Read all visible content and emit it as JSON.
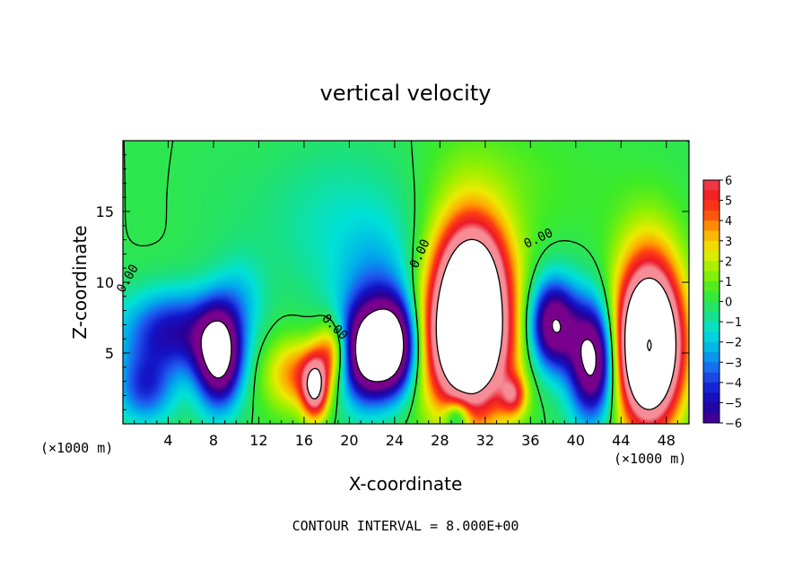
{
  "chart_data": {
    "type": "heatmap",
    "title": "vertical velocity",
    "xlabel": "X-coordinate",
    "ylabel": "Z-coordinate",
    "x_unit": "(×1000 m)",
    "footer": "CONTOUR INTERVAL = 8.000E+00",
    "xlim": [
      0,
      50
    ],
    "ylim": [
      0,
      20
    ],
    "xticks": [
      4,
      8,
      12,
      16,
      20,
      24,
      28,
      32,
      36,
      40,
      44,
      48
    ],
    "yticks": [
      5,
      10,
      15
    ],
    "colorbar": {
      "range": [
        -6,
        6
      ],
      "labels": [
        "6",
        "5",
        "4",
        "3",
        "2",
        "1",
        "0",
        "−1",
        "−2",
        "−3",
        "−4",
        "−5",
        "−6"
      ]
    },
    "contour_labels": [
      "0.00",
      "0.00",
      "0.00",
      "0.00"
    ],
    "features": [
      {
        "x": 8.5,
        "z": 4.8,
        "sign": -1,
        "amp": 9,
        "sx": 1.4,
        "sz": 2.4
      },
      {
        "x": 4.5,
        "z": 6.5,
        "sign": -1,
        "amp": 5,
        "sx": 3.2,
        "sz": 2.0
      },
      {
        "x": 2.0,
        "z": 2.5,
        "sign": -1,
        "amp": 4,
        "sx": 1.8,
        "sz": 1.8
      },
      {
        "x": 15.5,
        "z": 3.5,
        "sign": 1,
        "amp": 4,
        "sx": 2.0,
        "sz": 1.8
      },
      {
        "x": 17.0,
        "z": 2.5,
        "sign": 1,
        "amp": 7,
        "sx": 0.8,
        "sz": 1.5
      },
      {
        "x": 18.5,
        "z": 5.2,
        "sign": 1,
        "amp": 4,
        "sx": 1.0,
        "sz": 1.5
      },
      {
        "x": 21.5,
        "z": 5.0,
        "sign": -1,
        "amp": 9,
        "sx": 1.6,
        "sz": 2.4
      },
      {
        "x": 24.0,
        "z": 5.5,
        "sign": -1,
        "amp": 9,
        "sx": 1.4,
        "sz": 2.3
      },
      {
        "x": 22.5,
        "z": 9.5,
        "sign": -1,
        "amp": 2,
        "sx": 2.5,
        "sz": 3.0
      },
      {
        "x": 30.5,
        "z": 6.5,
        "sign": 1,
        "amp": 15,
        "sx": 2.6,
        "sz": 4.0
      },
      {
        "x": 31.0,
        "z": 11.5,
        "sign": 1,
        "amp": 4,
        "sx": 2.2,
        "sz": 2.6
      },
      {
        "x": 30.0,
        "z": 16.0,
        "sign": 1,
        "amp": 1.2,
        "sx": 3.0,
        "sz": 3.5
      },
      {
        "x": 34.5,
        "z": 2.0,
        "sign": 1,
        "amp": 4,
        "sx": 0.8,
        "sz": 1.0
      },
      {
        "x": 29.5,
        "z": 0.5,
        "sign": -1,
        "amp": 4,
        "sx": 0.8,
        "sz": 0.8
      },
      {
        "x": 38.0,
        "z": 7.0,
        "sign": -1,
        "amp": 8,
        "sx": 1.5,
        "sz": 2.2
      },
      {
        "x": 41.5,
        "z": 4.5,
        "sign": -1,
        "amp": 9,
        "sx": 1.4,
        "sz": 2.8
      },
      {
        "x": 46.5,
        "z": 5.5,
        "sign": 1,
        "amp": 16,
        "sx": 2.0,
        "sz": 3.8
      },
      {
        "x": 46.5,
        "z": 12.5,
        "sign": 1,
        "amp": 1.0,
        "sx": 2.5,
        "sz": 3.0
      },
      {
        "x": 10.5,
        "z": 9.0,
        "sign": -1,
        "amp": 1.5,
        "sx": 1.5,
        "sz": 2.0
      },
      {
        "x": 20.0,
        "z": 14.0,
        "sign": -1,
        "amp": 1.2,
        "sx": 6.0,
        "sz": 4.0
      },
      {
        "x": 36.0,
        "z": 17.0,
        "sign": 1,
        "amp": 0.6,
        "sx": 5.0,
        "sz": 3.0
      }
    ]
  }
}
